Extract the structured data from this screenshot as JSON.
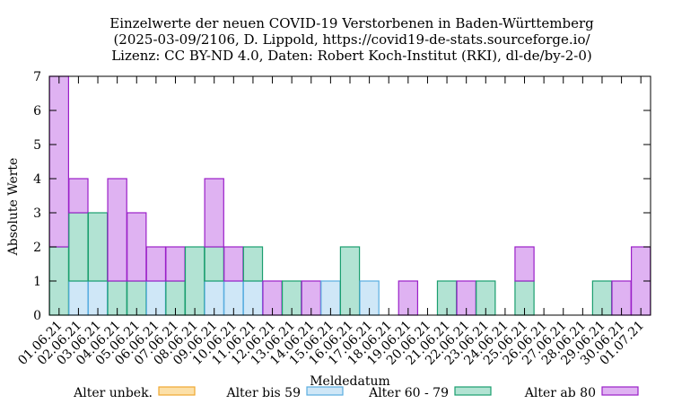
{
  "chart_data": {
    "type": "bar",
    "stacked": true,
    "title_lines": [
      "Einzelwerte der neuen COVID-19 Verstorbenen in Baden-Württemberg",
      "(2025-03-09/2106, D. Lippold, https://covid19-de-stats.sourceforge.io/",
      "Lizenz: CC BY-ND 4.0, Daten: Robert Koch-Institut (RKI), dl-de/by-2-0)"
    ],
    "xlabel": "Meldedatum",
    "ylabel": "Absolute Werte",
    "ylim": [
      0,
      7
    ],
    "yticks": [
      0,
      1,
      2,
      3,
      4,
      5,
      6,
      7
    ],
    "grid": false,
    "legend_position": "bottom",
    "categories": [
      "01.06.21",
      "02.06.21",
      "03.06.21",
      "04.06.21",
      "05.06.21",
      "06.06.21",
      "07.06.21",
      "08.06.21",
      "09.06.21",
      "10.06.21",
      "11.06.21",
      "12.06.21",
      "13.06.21",
      "14.06.21",
      "15.06.21",
      "16.06.21",
      "17.06.21",
      "18.06.21",
      "19.06.21",
      "20.06.21",
      "21.06.21",
      "22.06.21",
      "23.06.21",
      "24.06.21",
      "25.06.21",
      "26.06.21",
      "27.06.21",
      "28.06.21",
      "29.06.21",
      "30.06.21",
      "01.07.21"
    ],
    "series": [
      {
        "name": "Alter unbek.",
        "color": "#f0a830",
        "fill": "#fce0a8",
        "values": [
          0,
          0,
          0,
          0,
          0,
          0,
          0,
          0,
          0,
          0,
          0,
          0,
          0,
          0,
          0,
          0,
          0,
          0,
          0,
          0,
          0,
          0,
          0,
          0,
          0,
          0,
          0,
          0,
          0,
          0,
          0
        ]
      },
      {
        "name": "Alter bis 59",
        "color": "#5aaee0",
        "fill": "#cfe7f7",
        "values": [
          0,
          1,
          1,
          0,
          0,
          1,
          0,
          0,
          1,
          1,
          1,
          0,
          0,
          0,
          1,
          0,
          1,
          0,
          0,
          0,
          0,
          0,
          0,
          0,
          0,
          0,
          0,
          0,
          0,
          0,
          0
        ]
      },
      {
        "name": "Alter 60 - 79",
        "color": "#1a9e6e",
        "fill": "#b2e3d3",
        "values": [
          2,
          2,
          2,
          1,
          1,
          0,
          1,
          2,
          1,
          0,
          1,
          0,
          1,
          0,
          0,
          2,
          0,
          0,
          0,
          0,
          1,
          0,
          1,
          0,
          1,
          0,
          0,
          0,
          1,
          0,
          0
        ]
      },
      {
        "name": "Alter ab 80",
        "color": "#9a1fc8",
        "fill": "#dfb2f2",
        "values": [
          5,
          1,
          0,
          3,
          2,
          1,
          1,
          0,
          2,
          1,
          0,
          1,
          0,
          1,
          0,
          0,
          0,
          0,
          1,
          0,
          0,
          1,
          0,
          0,
          1,
          0,
          0,
          0,
          0,
          1,
          2
        ]
      }
    ]
  }
}
